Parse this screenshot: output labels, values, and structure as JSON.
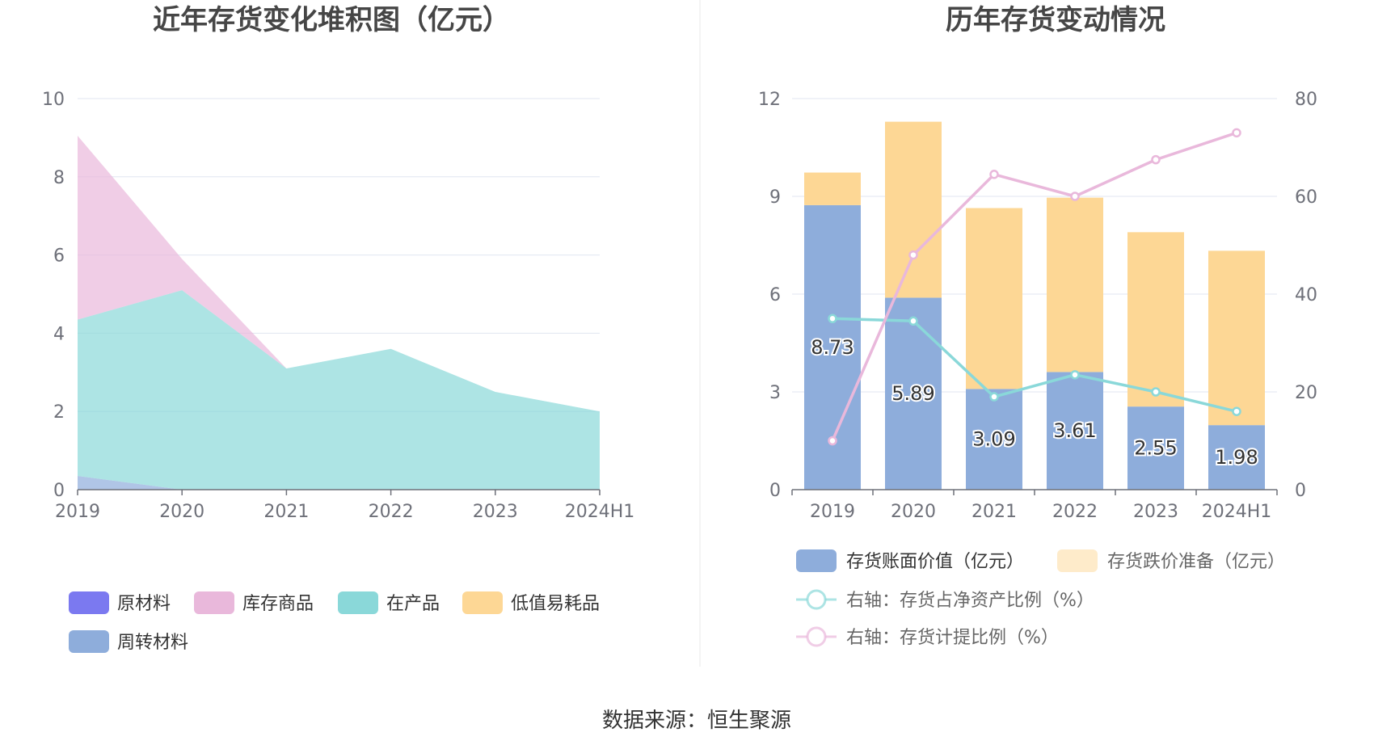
{
  "source_text": "数据来源：恒生聚源",
  "chart_data": [
    {
      "type": "area",
      "title": "近年存货变化堆积图（亿元）",
      "categories": [
        "2019",
        "2020",
        "2021",
        "2022",
        "2023",
        "2024H1"
      ],
      "ylim": [
        0,
        10
      ],
      "yticks": [
        "0",
        "2",
        "4",
        "6",
        "8",
        "10"
      ],
      "grid": true,
      "legend_position": "bottom",
      "stacked": true,
      "series": [
        {
          "name": "原材料",
          "color": "#7b79f0",
          "values": [
            0.0,
            0.0,
            0.0,
            0.0,
            0.0,
            0.0
          ]
        },
        {
          "name": "库存商品",
          "color": "#e9b8db",
          "values": [
            4.7,
            0.8,
            0.0,
            0.0,
            0.0,
            0.0
          ]
        },
        {
          "name": "在产品",
          "color": "#8ad8d9",
          "values": [
            4.0,
            5.1,
            3.1,
            3.6,
            2.5,
            2.0
          ]
        },
        {
          "name": "低值易耗品",
          "color": "#fdd795",
          "values": [
            0.0,
            0.0,
            0.0,
            0.0,
            0.0,
            0.0
          ]
        },
        {
          "name": "周转材料",
          "color": "#8eaddb",
          "values": [
            0.35,
            0.0,
            0.0,
            0.0,
            0.0,
            0.0
          ]
        }
      ]
    },
    {
      "type": "bar",
      "title": "历年存货变动情况",
      "categories": [
        "2019",
        "2020",
        "2021",
        "2022",
        "2023",
        "2024H1"
      ],
      "ylim": [
        0,
        12
      ],
      "yticks": [
        "0",
        "3",
        "6",
        "9",
        "12"
      ],
      "y2lim": [
        0,
        80
      ],
      "y2ticks": [
        "0",
        "20",
        "40",
        "60",
        "80"
      ],
      "grid": true,
      "legend_position": "bottom",
      "stacked": true,
      "series": [
        {
          "name": "存货账面价值（亿元）",
          "kind": "bar",
          "color": "#8eaddb",
          "values": [
            8.73,
            5.89,
            3.09,
            3.61,
            2.55,
            1.98
          ],
          "labels": [
            "8.73",
            "5.89",
            "3.09",
            "3.61",
            "2.55",
            "1.98"
          ]
        },
        {
          "name": "存货跌价准备（亿元）",
          "kind": "bar",
          "color": "#fdd795",
          "values": [
            1.0,
            5.4,
            5.55,
            5.35,
            5.35,
            5.35
          ]
        },
        {
          "name": "右轴：存货占净资产比例（%）",
          "kind": "line",
          "axis": "right",
          "color": "#8ad8d9",
          "values": [
            35.0,
            34.5,
            19.0,
            23.5,
            20.0,
            16.0
          ]
        },
        {
          "name": "右轴：存货计提比例（%）",
          "kind": "line",
          "axis": "right",
          "color": "#e9b8db",
          "values": [
            10.0,
            48.0,
            64.5,
            60.0,
            67.5,
            73.0
          ]
        }
      ]
    }
  ]
}
